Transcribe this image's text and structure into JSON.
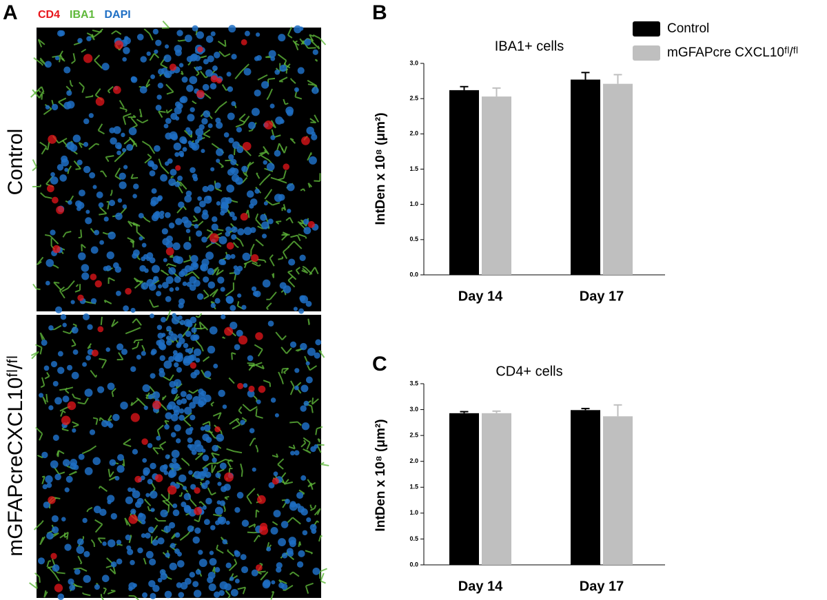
{
  "panel_a": {
    "panel": "A",
    "stains": [
      {
        "text": "CD4",
        "color": "#e8151b"
      },
      {
        "text": "IBA1",
        "color": "#5fb83a"
      },
      {
        "text": "DAPI",
        "color": "#1f6fc4"
      }
    ],
    "images": [
      {
        "label": "Control"
      },
      {
        "label": "mGFAPcreCXCL10ᶠˡ/ᶠˡ"
      }
    ]
  },
  "chart_data": [
    {
      "type": "bar",
      "panel": "B",
      "title": "IBA1+ cells",
      "ylabel": "IntDen x 10⁸ (μm²)",
      "categories": [
        "Day 14",
        "Day 17"
      ],
      "series": [
        {
          "name": "Control",
          "color": "#000000",
          "values": [
            2.62,
            2.77
          ],
          "errors": [
            0.05,
            0.1
          ]
        },
        {
          "name": "mGFAPcre CXCL10ᶠˡ/ᶠˡ",
          "color": "#bfbfbf",
          "values": [
            2.53,
            2.71
          ],
          "errors": [
            0.12,
            0.13
          ]
        }
      ],
      "ylim": [
        0,
        3.0
      ],
      "yticks": [
        {
          "value": 0,
          "label": "0.0"
        },
        0.5,
        {
          "value": 1,
          "label": "1.0"
        },
        1.5,
        {
          "value": 2,
          "label": "2.0"
        },
        2.5,
        {
          "value": 3,
          "label": "3.0"
        }
      ],
      "legend": "top-right"
    },
    {
      "type": "bar",
      "panel": "C",
      "title": "CD4+ cells",
      "ylabel": "IntDen x 10⁸ (μm²)",
      "categories": [
        "Day 14",
        "Day 17"
      ],
      "series": [
        {
          "color": "#000000",
          "values": [
            2.93,
            2.99
          ],
          "errors": [
            0.03,
            0.03
          ]
        },
        {
          "color": "#bfbfbf",
          "values": [
            2.93,
            2.87
          ],
          "errors": [
            0.04,
            0.22
          ]
        }
      ],
      "ylim": [
        0,
        3.5
      ],
      "yticks": [
        {
          "value": 0,
          "label": "0.0"
        },
        0.5,
        {
          "value": 1,
          "label": "1.0"
        },
        1.5,
        {
          "value": 2,
          "label": "2.0"
        },
        2.5,
        {
          "value": 3,
          "label": "3.0"
        },
        3.5
      ]
    }
  ]
}
